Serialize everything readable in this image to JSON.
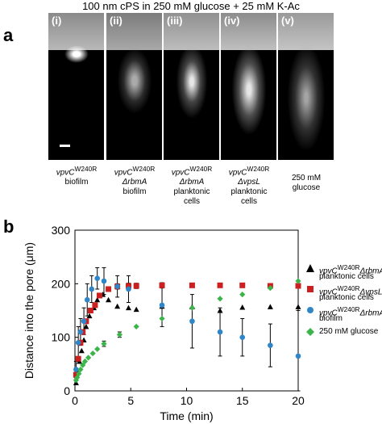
{
  "header": "100 nm cPS in 250 mM glucose + 25 mM K-Ac",
  "panel_a": {
    "letter": "a",
    "images": [
      {
        "roman": "(i)",
        "caption": [
          "vpvC",
          "W240R",
          "",
          "biofilm",
          ""
        ]
      },
      {
        "roman": "(ii)",
        "caption": [
          "vpvC",
          "W240R",
          "ΔrbmA",
          "biofilm",
          ""
        ]
      },
      {
        "roman": "(iii)",
        "caption": [
          "vpvC",
          "W240R",
          "ΔrbmA",
          "planktonic",
          "cells"
        ]
      },
      {
        "roman": "(iv)",
        "caption": [
          "vpvC",
          "W240R",
          "ΔvpsL",
          "planktonic",
          "cells"
        ]
      },
      {
        "roman": "(v)",
        "caption": [
          "250 mM",
          "",
          "glucose",
          "",
          ""
        ]
      }
    ]
  },
  "panel_b": {
    "letter": "b",
    "legend": [
      {
        "label_1": "vpvC",
        "sup": "W240R",
        "label_2": "ΔrbmA",
        "line2": "planktonic cells",
        "color": "#000000",
        "marker": "triangle"
      },
      {
        "label_1": "vpvC",
        "sup": "W240R",
        "label_2": "ΔvpsL",
        "line2": "planktonic cells",
        "color": "#cc1f1f",
        "marker": "square"
      },
      {
        "label_1": "vpvC",
        "sup": "W240R",
        "label_2": "ΔrbmA",
        "line2": "biofilm",
        "color": "#2e86c8",
        "marker": "circle"
      },
      {
        "label_1": "250 mM glucose",
        "sup": "",
        "label_2": "",
        "line2": "",
        "color": "#3bb44a",
        "marker": "diamond"
      }
    ]
  },
  "chart_data": {
    "type": "scatter",
    "xlabel": "Time (min)",
    "ylabel": "Distance into the pore (μm)",
    "xlim": [
      0,
      20
    ],
    "ylim": [
      0,
      300
    ],
    "xticks": [
      0,
      5,
      10,
      15,
      20
    ],
    "yticks": [
      0,
      100,
      200,
      300
    ],
    "grid": false,
    "series": [
      {
        "name": "vpvCW240RΔrbmA planktonic cells",
        "color": "#000000",
        "marker": "triangle",
        "x": [
          0.1,
          0.25,
          0.4,
          0.6,
          0.8,
          1.0,
          1.3,
          1.7,
          2.0,
          2.5,
          3.0,
          3.8,
          4.8,
          5.5,
          7.8,
          10.5,
          13.0,
          15.0,
          17.5,
          20.0
        ],
        "y": [
          15,
          35,
          55,
          75,
          95,
          120,
          140,
          155,
          170,
          180,
          170,
          158,
          155,
          152,
          158,
          157,
          150,
          156,
          157,
          157
        ],
        "err": [
          0,
          0,
          0,
          0,
          0,
          0,
          0,
          0,
          0,
          0,
          0,
          0,
          0,
          0,
          0,
          0,
          0,
          0,
          0,
          0
        ]
      },
      {
        "name": "vpvCW240RΔvpsL planktonic cells",
        "color": "#cc1f1f",
        "marker": "square",
        "x": [
          0.1,
          0.3,
          0.5,
          0.7,
          1.0,
          1.4,
          1.8,
          2.2,
          3.0,
          3.8,
          4.8,
          5.5,
          7.8,
          10.5,
          13.0,
          15.0,
          17.5,
          20.0
        ],
        "y": [
          30,
          60,
          90,
          110,
          130,
          150,
          160,
          178,
          190,
          195,
          196,
          196,
          197,
          197,
          197,
          197,
          196,
          196
        ],
        "err": [
          0,
          0,
          0,
          0,
          0,
          0,
          0,
          0,
          0,
          5,
          5,
          5,
          5,
          4,
          4,
          4,
          4,
          4
        ]
      },
      {
        "name": "vpvCW240RΔrbmA biofilm",
        "color": "#2e86c8",
        "marker": "circle",
        "x": [
          0.1,
          0.3,
          0.5,
          0.8,
          1.1,
          1.5,
          2.0,
          2.6,
          3.8,
          4.8,
          7.8,
          10.5,
          13.0,
          15.0,
          17.5,
          20.0
        ],
        "y": [
          40,
          90,
          110,
          130,
          170,
          190,
          210,
          205,
          195,
          190,
          160,
          130,
          110,
          100,
          85,
          65
        ],
        "err": [
          15,
          30,
          25,
          25,
          30,
          25,
          20,
          25,
          20,
          25,
          40,
          50,
          45,
          35,
          40,
          85
        ]
      },
      {
        "name": "250 mM glucose",
        "color": "#3bb44a",
        "marker": "diamond",
        "x": [
          0.1,
          0.2,
          0.35,
          0.5,
          0.7,
          0.9,
          1.2,
          1.6,
          2.0,
          2.6,
          4.0,
          5.5,
          7.8,
          10.5,
          13.0,
          15.0,
          17.5,
          20.0
        ],
        "y": [
          20,
          25,
          32,
          40,
          48,
          55,
          62,
          70,
          78,
          88,
          105,
          120,
          135,
          155,
          172,
          180,
          192,
          205
        ],
        "err": [
          0,
          0,
          0,
          0,
          0,
          0,
          0,
          0,
          0,
          5,
          5,
          0,
          0,
          0,
          0,
          0,
          0,
          0
        ]
      }
    ]
  }
}
